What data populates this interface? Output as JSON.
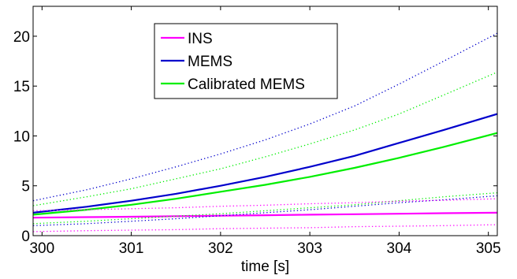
{
  "chart_data": {
    "type": "line",
    "title": "",
    "xlabel": "time [s]",
    "ylabel": "",
    "xlim": [
      299.9,
      305.1
    ],
    "ylim": [
      0,
      23
    ],
    "x_ticks": [
      300,
      301,
      302,
      303,
      304,
      305
    ],
    "y_ticks": [
      0,
      5,
      10,
      15,
      20
    ],
    "x_tick_labels": [
      "300",
      "301",
      "302",
      "303",
      "304",
      "305"
    ],
    "y_tick_labels": [
      "0",
      "5",
      "10",
      "15",
      "20"
    ],
    "grid": false,
    "legend_position": "top-center",
    "series": [
      {
        "name": "INS",
        "color": "#ff00ff",
        "style": "solid",
        "x": [
          299.9,
          300.5,
          301.0,
          301.5,
          302.0,
          302.5,
          303.0,
          303.5,
          304.0,
          304.5,
          305.1
        ],
        "y": [
          1.8,
          1.86,
          1.9,
          1.95,
          2.0,
          2.05,
          2.1,
          2.15,
          2.2,
          2.25,
          2.3
        ]
      },
      {
        "name": "MEMS",
        "color": "#0000cc",
        "style": "solid",
        "x": [
          299.9,
          300.5,
          301.0,
          301.5,
          302.0,
          302.5,
          303.0,
          303.5,
          304.0,
          304.5,
          305.1
        ],
        "y": [
          2.3,
          2.9,
          3.5,
          4.2,
          5.0,
          5.9,
          6.9,
          8.0,
          9.3,
          10.6,
          12.2
        ]
      },
      {
        "name": "Calibrated MEMS",
        "color": "#00ee00",
        "style": "solid",
        "x": [
          299.9,
          300.5,
          301.0,
          301.5,
          302.0,
          302.5,
          303.0,
          303.5,
          304.0,
          304.5,
          305.1
        ],
        "y": [
          2.1,
          2.6,
          3.1,
          3.7,
          4.4,
          5.1,
          5.9,
          6.8,
          7.8,
          8.9,
          10.3
        ]
      },
      {
        "color": "#0000cc",
        "style": "dotted",
        "x": [
          299.9,
          300.5,
          301.0,
          301.5,
          302.0,
          302.5,
          303.0,
          303.5,
          304.0,
          304.5,
          305.1
        ],
        "y": [
          3.5,
          4.6,
          5.7,
          6.9,
          8.2,
          9.6,
          11.2,
          13.0,
          15.2,
          17.5,
          20.3
        ]
      },
      {
        "color": "#00ee00",
        "style": "dotted",
        "x": [
          299.9,
          300.5,
          301.0,
          301.5,
          302.0,
          302.5,
          303.0,
          303.5,
          304.0,
          304.5,
          305.1
        ],
        "y": [
          3.0,
          3.9,
          4.7,
          5.7,
          6.7,
          7.9,
          9.2,
          10.6,
          12.2,
          14.1,
          16.4
        ]
      },
      {
        "color": "#0000cc",
        "style": "dotted",
        "x": [
          299.9,
          300.5,
          301.0,
          301.5,
          302.0,
          302.5,
          303.0,
          303.5,
          304.0,
          304.5,
          305.1
        ],
        "y": [
          1.0,
          1.2,
          1.45,
          1.7,
          2.0,
          2.3,
          2.6,
          2.95,
          3.3,
          3.6,
          4.0
        ]
      },
      {
        "color": "#00ee00",
        "style": "dotted",
        "x": [
          299.9,
          300.5,
          301.0,
          301.5,
          302.0,
          302.5,
          303.0,
          303.5,
          304.0,
          304.5,
          305.1
        ],
        "y": [
          1.2,
          1.45,
          1.7,
          1.95,
          2.2,
          2.5,
          2.8,
          3.1,
          3.5,
          3.9,
          4.3
        ]
      },
      {
        "color": "#ff00ff",
        "style": "dotted",
        "x": [
          299.9,
          300.5,
          301.0,
          301.5,
          302.0,
          302.5,
          303.0,
          303.5,
          304.0,
          304.5,
          305.1
        ],
        "y": [
          2.5,
          2.6,
          2.7,
          2.8,
          2.95,
          3.05,
          3.2,
          3.3,
          3.45,
          3.55,
          3.7
        ]
      },
      {
        "color": "#ff00ff",
        "style": "dotted",
        "x": [
          299.9,
          300.5,
          301.0,
          301.5,
          302.0,
          302.5,
          303.0,
          303.5,
          304.0,
          304.5,
          305.1
        ],
        "y": [
          0.4,
          0.5,
          0.55,
          0.6,
          0.7,
          0.75,
          0.8,
          0.9,
          0.95,
          1.0,
          1.1
        ]
      }
    ]
  }
}
